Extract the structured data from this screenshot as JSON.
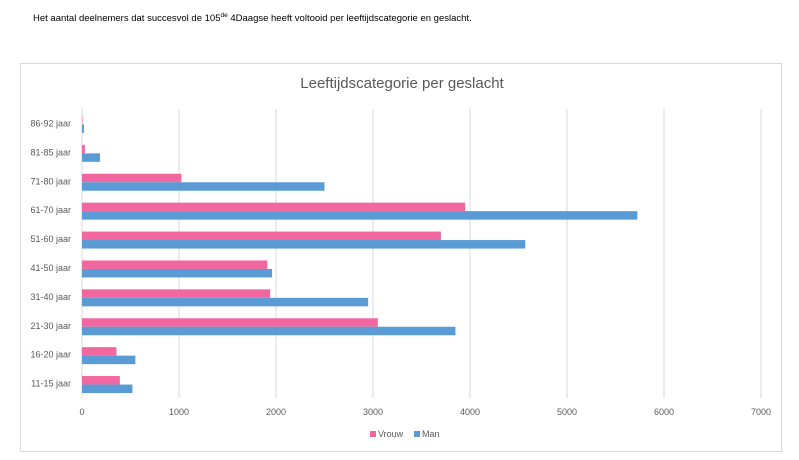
{
  "caption": {
    "text_before": "Het aantal deelnemers dat succesvol de 105",
    "superscript": "de",
    "text_after": " 4Daagse heeft voltooid per leeftijdscategorie en geslacht."
  },
  "chart_data": {
    "type": "bar",
    "orientation": "horizontal",
    "title": "Leeftijdscategorie per geslacht",
    "xlabel": "",
    "ylabel": "",
    "categories": [
      "86-92 jaar",
      "81-85 jaar",
      "71-80 jaar",
      "61-70 jaar",
      "51-60 jaar",
      "41-50 jaar",
      "31-40 jaar",
      "21-30 jaar",
      "16-20 jaar",
      "11-15 jaar"
    ],
    "series": [
      {
        "name": "Vrouw",
        "color": "#f2679f",
        "values": [
          5,
          30,
          1025,
          3950,
          3700,
          1910,
          1940,
          3050,
          355,
          390
        ]
      },
      {
        "name": "Man",
        "color": "#5b9bd5",
        "values": [
          20,
          185,
          2500,
          5725,
          4570,
          1960,
          2950,
          3850,
          550,
          520
        ]
      }
    ],
    "xlim": [
      0,
      7000
    ],
    "xticks": [
      "0",
      "1000",
      "2000",
      "3000",
      "4000",
      "5000",
      "6000",
      "7000"
    ],
    "grid": true,
    "legend": "bottom"
  }
}
